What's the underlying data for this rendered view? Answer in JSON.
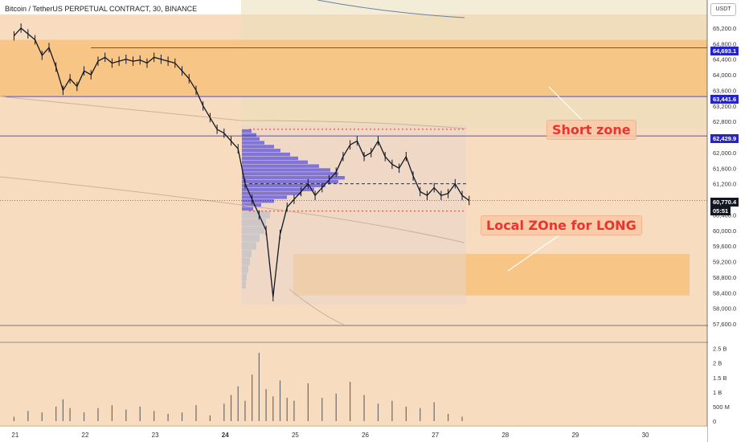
{
  "header": {
    "title": "Bitcoin / TetherUS PERPETUAL CONTRACT, 30, BINANCE",
    "currency": "USDT"
  },
  "annotations": {
    "short_zone": "Short zone",
    "long_zone": "Local ZOne for LONG"
  },
  "badges": {
    "level_1": "64,693.1",
    "level_2": "63,441.6",
    "level_3": "62,429.9",
    "last_price": "60,770.4",
    "countdown": "05:51"
  },
  "colors": {
    "price_line": "#131722",
    "zone_fill": "#f7c27d",
    "background_zone": "#f8dcc0",
    "volume_profile": "#6c63d9",
    "level_badge": "#2424c8",
    "dotted_level": "#e53935",
    "callout_text": "#e8352f"
  },
  "chart_data": {
    "type": "line",
    "title": "Bitcoin / TetherUS PERPETUAL CONTRACT, 30, BINANCE",
    "x_ticks": [
      "21",
      "22",
      "23",
      "24",
      "25",
      "26",
      "27",
      "28",
      "29",
      "30"
    ],
    "x_tick_index": [
      0,
      1,
      2,
      3,
      4,
      5,
      6,
      7,
      8,
      9
    ],
    "price_ticks": [
      "65,200.0",
      "64,800.0",
      "64,400.0",
      "64,000.0",
      "63,600.0",
      "63,200.0",
      "62,800.0",
      "62,400.0",
      "62,000.0",
      "61,600.0",
      "61,200.0",
      "60,800.0",
      "60,400.0",
      "60,000.0",
      "59,600.0",
      "59,200.0",
      "58,800.0",
      "58,400.0",
      "58,000.0",
      "57,600.0"
    ],
    "price_tick_values": [
      65200,
      64800,
      64400,
      64000,
      63600,
      63200,
      62800,
      62400,
      62000,
      61600,
      61200,
      60800,
      60400,
      60000,
      59600,
      59200,
      58800,
      58400,
      58000,
      57600
    ],
    "ylim": [
      57560,
      65550
    ],
    "xlim": [
      -0.2,
      9.9
    ],
    "volume_ticks": [
      "2.5 B",
      "2 B",
      "1.5 B",
      "1 B",
      "500 M",
      "0"
    ],
    "volume_tick_values": [
      2.5,
      2,
      1.5,
      1,
      0.5,
      0
    ],
    "volume_ylim": [
      0,
      2.6
    ],
    "horizontal_levels": [
      64693.1,
      63441.6,
      62429.9
    ],
    "price_series": {
      "x": [
        0,
        0.1,
        0.2,
        0.3,
        0.4,
        0.5,
        0.6,
        0.7,
        0.8,
        0.9,
        1.0,
        1.1,
        1.2,
        1.3,
        1.4,
        1.5,
        1.6,
        1.7,
        1.8,
        1.9,
        2.0,
        2.1,
        2.2,
        2.3,
        2.4,
        2.5,
        2.6,
        2.7,
        2.8,
        2.9,
        3.0,
        3.1,
        3.2,
        3.3,
        3.4,
        3.5,
        3.6,
        3.7,
        3.8,
        3.9,
        4.0,
        4.1,
        4.2,
        4.3,
        4.4,
        4.5,
        4.6,
        4.7,
        4.8,
        4.9,
        5.0,
        5.1,
        5.2,
        5.3,
        5.4,
        5.5,
        5.6,
        5.7,
        5.8,
        5.9,
        6.0,
        6.1,
        6.2,
        6.3,
        6.4,
        6.5
      ],
      "y": [
        65000,
        65200,
        65050,
        64900,
        64500,
        64700,
        64200,
        63600,
        63900,
        63700,
        64100,
        64000,
        64350,
        64450,
        64300,
        64350,
        64400,
        64350,
        64380,
        64300,
        64450,
        64400,
        64350,
        64300,
        64100,
        63900,
        63600,
        63200,
        62900,
        62600,
        62500,
        62300,
        62100,
        61200,
        60800,
        60400,
        60000,
        58300,
        59900,
        60600,
        60800,
        61000,
        61200,
        60900,
        61100,
        61300,
        61500,
        61900,
        62200,
        62300,
        61900,
        62000,
        62300,
        61900,
        61700,
        61600,
        61900,
        61400,
        61000,
        60900,
        61100,
        60900,
        60950,
        61200,
        60900,
        60770
      ]
    },
    "volume_series": {
      "x": [
        0,
        0.2,
        0.4,
        0.6,
        0.7,
        0.8,
        1.0,
        1.2,
        1.4,
        1.6,
        1.8,
        2.0,
        2.2,
        2.4,
        2.6,
        2.8,
        3.0,
        3.1,
        3.2,
        3.3,
        3.4,
        3.5,
        3.6,
        3.7,
        3.8,
        3.9,
        4.0,
        4.2,
        4.4,
        4.6,
        4.8,
        5.0,
        5.2,
        5.4,
        5.6,
        5.8,
        6.0,
        6.2,
        6.4
      ],
      "y": [
        0.15,
        0.35,
        0.3,
        0.5,
        0.75,
        0.45,
        0.3,
        0.45,
        0.55,
        0.4,
        0.5,
        0.35,
        0.25,
        0.3,
        0.55,
        0.2,
        0.6,
        0.9,
        1.2,
        0.7,
        1.6,
        2.35,
        1.1,
        0.85,
        1.4,
        0.8,
        0.7,
        1.3,
        0.8,
        0.95,
        1.35,
        0.9,
        0.6,
        0.7,
        0.5,
        0.45,
        0.65,
        0.25,
        0.15
      ]
    }
  }
}
